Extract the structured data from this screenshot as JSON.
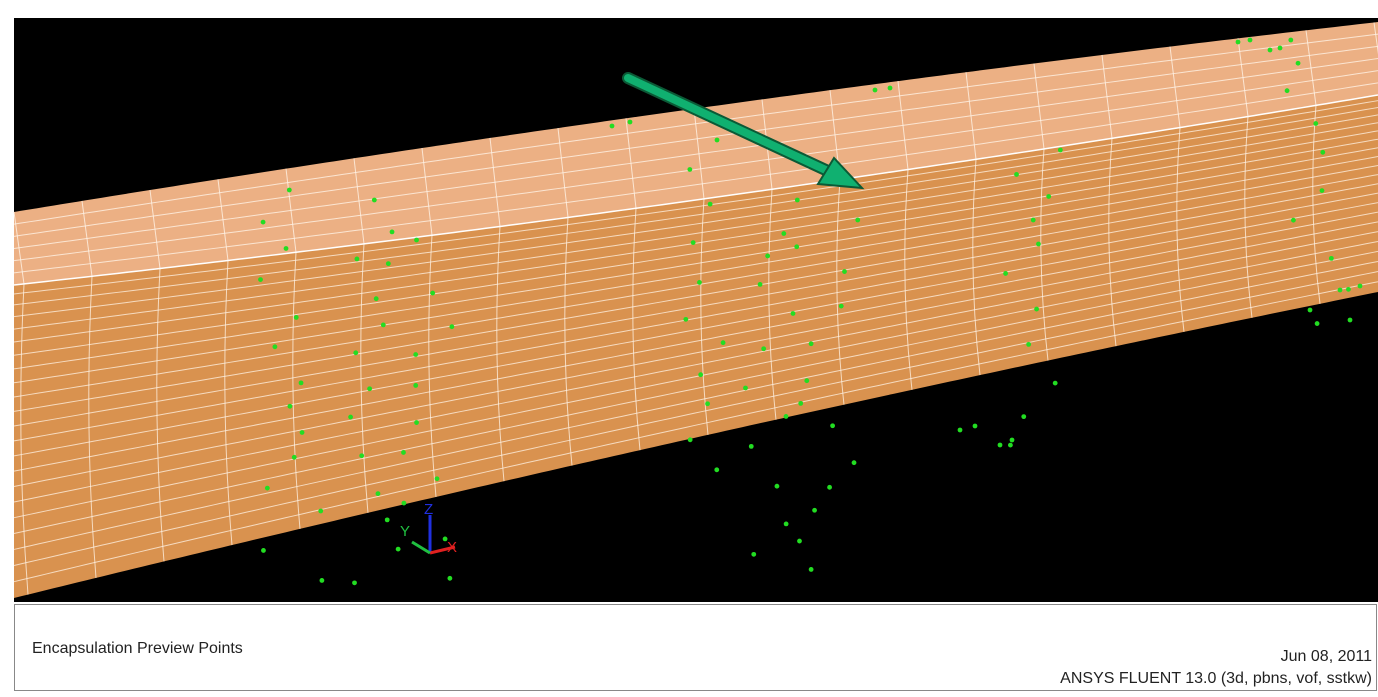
{
  "graphics_window": {
    "triad": {
      "x": "X",
      "y": "Y",
      "z": "Z"
    }
  },
  "status_panel": {
    "title": "Encapsulation Preview Points",
    "date": "Jun 08, 2011",
    "version": "ANSYS FLUENT 13.0 (3d, pbns, vof, sstkw)"
  }
}
